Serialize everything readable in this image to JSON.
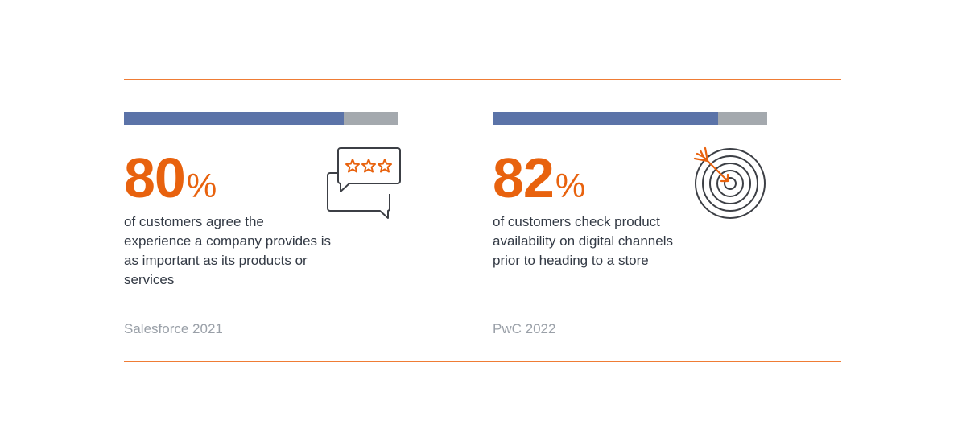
{
  "colors": {
    "accent": "#e8620e",
    "bar_fill": "#5b73a8",
    "bar_track": "#a4a9ae",
    "rule": "#ef7c35",
    "text": "#333a45",
    "muted": "#9aa0a8",
    "icon_stroke": "#3c3f45"
  },
  "stats": [
    {
      "value": "80",
      "unit": "%",
      "fraction": 0.8,
      "description": "of customers agree the experience a company provides is as important as its products or services",
      "source": "Salesforce 2021",
      "icon": "review-stars-chat-icon"
    },
    {
      "value": "82",
      "unit": "%",
      "fraction": 0.82,
      "description": "of customers check product availability on digital channels prior to heading to a store",
      "source": "PwC 2022",
      "icon": "target-arrow-icon"
    }
  ]
}
